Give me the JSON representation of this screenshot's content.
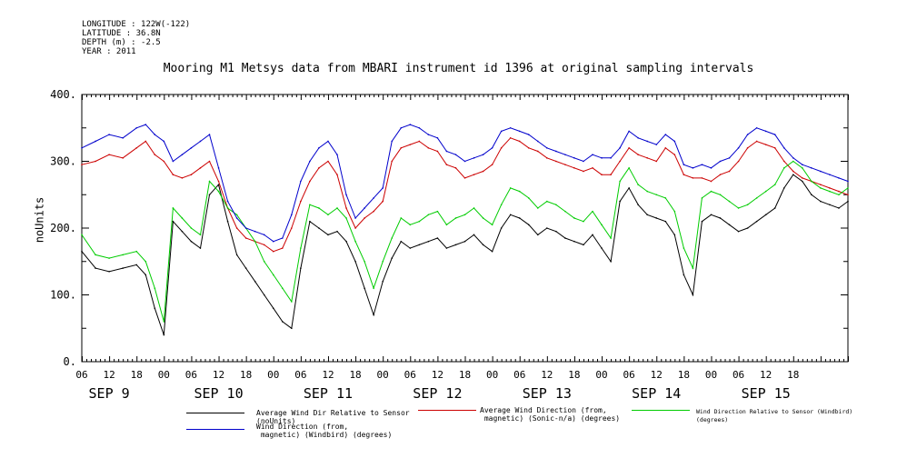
{
  "header": {
    "longitude": "LONGITUDE : 122W(-122)",
    "latitude": "LATITUDE : 36.8N",
    "depth": "DEPTH (m) : -2.5",
    "year": "YEAR : 2011"
  },
  "chart_data": {
    "type": "line",
    "title": "Mooring M1 Metsys data from MBARI instrument id 1396 at original sampling intervals",
    "ylabel": "noUnits",
    "xlabel": "",
    "ylim": [
      0,
      400
    ],
    "yticks": [
      "0.",
      "100.",
      "200.",
      "300.",
      "400."
    ],
    "ytick_values": [
      0,
      100,
      200,
      300,
      400
    ],
    "xlim_hours": [
      0,
      168
    ],
    "day_labels": [
      "SEP  9",
      "SEP 10",
      "SEP 11",
      "SEP 12",
      "SEP 13",
      "SEP 14",
      "SEP 15"
    ],
    "hour_ticks": [
      "06",
      "12",
      "18",
      "00",
      "06",
      "12",
      "18",
      "00",
      "06",
      "12",
      "18",
      "00",
      "06",
      "12",
      "18",
      "00",
      "06",
      "12",
      "18",
      "00",
      "06",
      "12",
      "18",
      "00",
      "06",
      "12",
      "18"
    ],
    "x_units": "hours from Sep 9 06:00 (approx)",
    "series": [
      {
        "name": "Average Wind Dir Relative to Sensor (noUnits)",
        "color": "#000000",
        "x": [
          0,
          3,
          6,
          9,
          12,
          14,
          16,
          18,
          20,
          22,
          24,
          26,
          28,
          30,
          32,
          34,
          36,
          38,
          40,
          42,
          44,
          46,
          48,
          50,
          52,
          54,
          56,
          58,
          60,
          62,
          64,
          66,
          68,
          70,
          72,
          74,
          76,
          78,
          80,
          82,
          84,
          86,
          88,
          90,
          92,
          94,
          96,
          98,
          100,
          102,
          104,
          106,
          108,
          110,
          112,
          114,
          116,
          118,
          120,
          122,
          124,
          126,
          128,
          130,
          132,
          134,
          136,
          138,
          140,
          142,
          144,
          146,
          148,
          150,
          152,
          154,
          156,
          158,
          160,
          162,
          164,
          166,
          168
        ],
        "values": [
          165,
          140,
          135,
          140,
          145,
          130,
          80,
          40,
          210,
          195,
          180,
          170,
          250,
          265,
          210,
          160,
          140,
          120,
          100,
          80,
          60,
          50,
          140,
          210,
          200,
          190,
          195,
          180,
          150,
          110,
          70,
          120,
          155,
          180,
          170,
          175,
          180,
          185,
          170,
          175,
          180,
          190,
          175,
          165,
          200,
          220,
          215,
          205,
          190,
          200,
          195,
          185,
          180,
          175,
          190,
          170,
          150,
          240,
          260,
          235,
          220,
          215,
          210,
          190,
          130,
          100,
          210,
          220,
          215,
          205,
          195,
          200,
          210,
          220,
          230,
          260,
          280,
          270,
          250,
          240,
          235,
          230,
          240
        ]
      },
      {
        "name": "Average Wind Direction (from, magnetic) (Sonic-n/a) (degrees)",
        "color": "#cc0000",
        "x": [
          0,
          3,
          6,
          9,
          12,
          14,
          16,
          18,
          20,
          22,
          24,
          26,
          28,
          30,
          32,
          34,
          36,
          38,
          40,
          42,
          44,
          46,
          48,
          50,
          52,
          54,
          56,
          58,
          60,
          62,
          64,
          66,
          68,
          70,
          72,
          74,
          76,
          78,
          80,
          82,
          84,
          86,
          88,
          90,
          92,
          94,
          96,
          98,
          100,
          102,
          104,
          106,
          108,
          110,
          112,
          114,
          116,
          118,
          120,
          122,
          124,
          126,
          128,
          130,
          132,
          134,
          136,
          138,
          140,
          142,
          144,
          146,
          148,
          150,
          152,
          154,
          156,
          158,
          160,
          162,
          164,
          166,
          168
        ],
        "values": [
          295,
          300,
          310,
          305,
          320,
          330,
          310,
          300,
          280,
          275,
          280,
          290,
          300,
          270,
          230,
          200,
          185,
          180,
          175,
          165,
          170,
          200,
          240,
          270,
          290,
          300,
          280,
          230,
          200,
          215,
          225,
          240,
          300,
          320,
          325,
          330,
          320,
          315,
          295,
          290,
          275,
          280,
          285,
          295,
          320,
          335,
          330,
          320,
          315,
          305,
          300,
          295,
          290,
          285,
          290,
          280,
          280,
          300,
          320,
          310,
          305,
          300,
          320,
          310,
          280,
          275,
          275,
          270,
          280,
          285,
          300,
          320,
          330,
          325,
          320,
          300,
          285,
          275,
          270,
          265,
          260,
          255,
          250
        ]
      },
      {
        "name": "Wind Direction Relative to Sensor (Windbird) (degrees)",
        "color": "#00cc00",
        "x": [
          0,
          3,
          6,
          9,
          12,
          14,
          16,
          18,
          20,
          22,
          24,
          26,
          28,
          30,
          32,
          34,
          36,
          38,
          40,
          42,
          44,
          46,
          48,
          50,
          52,
          54,
          56,
          58,
          60,
          62,
          64,
          66,
          68,
          70,
          72,
          74,
          76,
          78,
          80,
          82,
          84,
          86,
          88,
          90,
          92,
          94,
          96,
          98,
          100,
          102,
          104,
          106,
          108,
          110,
          112,
          114,
          116,
          118,
          120,
          122,
          124,
          126,
          128,
          130,
          132,
          134,
          136,
          138,
          140,
          142,
          144,
          146,
          148,
          150,
          152,
          154,
          156,
          158,
          160,
          162,
          164,
          166,
          168
        ],
        "values": [
          190,
          160,
          155,
          160,
          165,
          150,
          110,
          60,
          230,
          215,
          200,
          190,
          270,
          255,
          230,
          220,
          200,
          180,
          150,
          130,
          110,
          90,
          170,
          235,
          230,
          220,
          230,
          215,
          180,
          150,
          110,
          150,
          185,
          215,
          205,
          210,
          220,
          225,
          205,
          215,
          220,
          230,
          215,
          205,
          235,
          260,
          255,
          245,
          230,
          240,
          235,
          225,
          215,
          210,
          225,
          205,
          185,
          270,
          290,
          265,
          255,
          250,
          245,
          225,
          170,
          140,
          245,
          255,
          250,
          240,
          230,
          235,
          245,
          255,
          265,
          290,
          300,
          290,
          270,
          260,
          255,
          250,
          260
        ]
      },
      {
        "name": "Wind Direction (from, magnetic) (Windbird) (degrees)",
        "color": "#0000cc",
        "x": [
          0,
          3,
          6,
          9,
          12,
          14,
          16,
          18,
          20,
          22,
          24,
          26,
          28,
          30,
          32,
          34,
          36,
          38,
          40,
          42,
          44,
          46,
          48,
          50,
          52,
          54,
          56,
          58,
          60,
          62,
          64,
          66,
          68,
          70,
          72,
          74,
          76,
          78,
          80,
          82,
          84,
          86,
          88,
          90,
          92,
          94,
          96,
          98,
          100,
          102,
          104,
          106,
          108,
          110,
          112,
          114,
          116,
          118,
          120,
          122,
          124,
          126,
          128,
          130,
          132,
          134,
          136,
          138,
          140,
          142,
          144,
          146,
          148,
          150,
          152,
          154,
          156,
          158,
          160,
          162,
          164,
          166,
          168
        ],
        "values": [
          320,
          330,
          340,
          335,
          350,
          355,
          340,
          330,
          300,
          310,
          320,
          330,
          340,
          290,
          240,
          215,
          200,
          195,
          190,
          180,
          185,
          220,
          270,
          300,
          320,
          330,
          310,
          250,
          215,
          230,
          245,
          260,
          330,
          350,
          355,
          350,
          340,
          335,
          315,
          310,
          300,
          305,
          310,
          320,
          345,
          350,
          345,
          340,
          330,
          320,
          315,
          310,
          305,
          300,
          310,
          305,
          305,
          320,
          345,
          335,
          330,
          325,
          340,
          330,
          295,
          290,
          295,
          290,
          300,
          305,
          320,
          340,
          350,
          345,
          340,
          320,
          305,
          295,
          290,
          285,
          280,
          275,
          270
        ]
      }
    ],
    "legend": {
      "placement": "bottom",
      "entries": [
        {
          "label": "Average Wind Dir Relative to Sensor (noUnits)",
          "color": "#000000"
        },
        {
          "label": "Average Wind Direction (from,\n magnetic) (Sonic-n/a) (degrees)",
          "color": "#cc0000"
        },
        {
          "label": "Wind Direction Relative to Sensor (Windbird) (degrees)",
          "color": "#00cc00"
        },
        {
          "label": "Wind Direction (from,\n magnetic) (Windbird) (degrees)",
          "color": "#0000cc"
        }
      ]
    }
  }
}
